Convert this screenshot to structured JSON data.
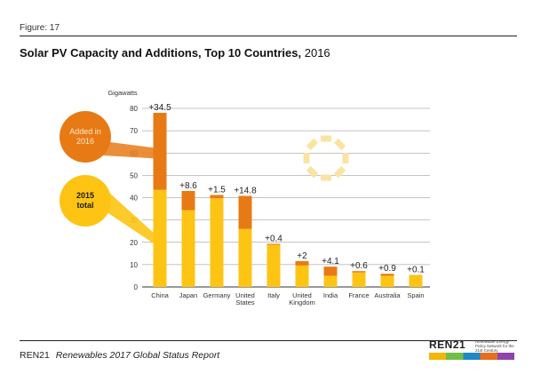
{
  "figure_label": "Figure: 17",
  "title_main": "Solar PV Capacity and Additions, Top 10 Countries,",
  "title_year": "2016",
  "footer": {
    "org": "REN21",
    "report": "Renewables 2017 Global Status Report"
  },
  "logo": {
    "text": "REN21",
    "tagline": "Renewable Energy Policy Network for the 21st Century"
  },
  "chart_data": {
    "type": "bar",
    "stacked": true,
    "ylabel": "Gigawatts",
    "ylim": [
      0,
      80
    ],
    "yticks": [
      0,
      10,
      20,
      30,
      40,
      50,
      60,
      70,
      80
    ],
    "grid": true,
    "categories": [
      "China",
      "Japan",
      "Germany",
      "United States",
      "Italy",
      "United Kingdom",
      "India",
      "France",
      "Australia",
      "Spain"
    ],
    "category_lines": [
      [
        "China"
      ],
      [
        "Japan"
      ],
      [
        "Germany"
      ],
      [
        "United",
        "States"
      ],
      [
        "Italy"
      ],
      [
        "United",
        "Kingdom"
      ],
      [
        "India"
      ],
      [
        "France"
      ],
      [
        "Australia"
      ],
      [
        "Spain"
      ]
    ],
    "series": [
      {
        "name": "2015 total",
        "color": "#fdc414",
        "values": [
          43.5,
          34.4,
          39.7,
          26.0,
          18.9,
          9.6,
          5.0,
          6.5,
          5.0,
          5.3
        ]
      },
      {
        "name": "Added in 2016",
        "color": "#e87a16",
        "values": [
          34.5,
          8.6,
          1.5,
          14.8,
          0.4,
          2.0,
          4.1,
          0.6,
          0.9,
          0.1
        ]
      }
    ],
    "data_labels": [
      "+34.5",
      "+8.6",
      "+1.5",
      "+14.8",
      "+0.4",
      "+2",
      "+4.1",
      "+0.6",
      "+0.9",
      "+0.1"
    ],
    "legend": [
      {
        "label_lines": [
          "Added in",
          "2016"
        ],
        "color": "#e87a16",
        "text_color": "#fde9c8",
        "points_to": "Added in 2016"
      },
      {
        "label_lines": [
          "2015",
          "total"
        ],
        "color": "#fdc414",
        "text_color": "#1a1a1a",
        "points_to": "2015 total"
      }
    ],
    "legend_placement": "left",
    "decoration": "sun-icon"
  }
}
